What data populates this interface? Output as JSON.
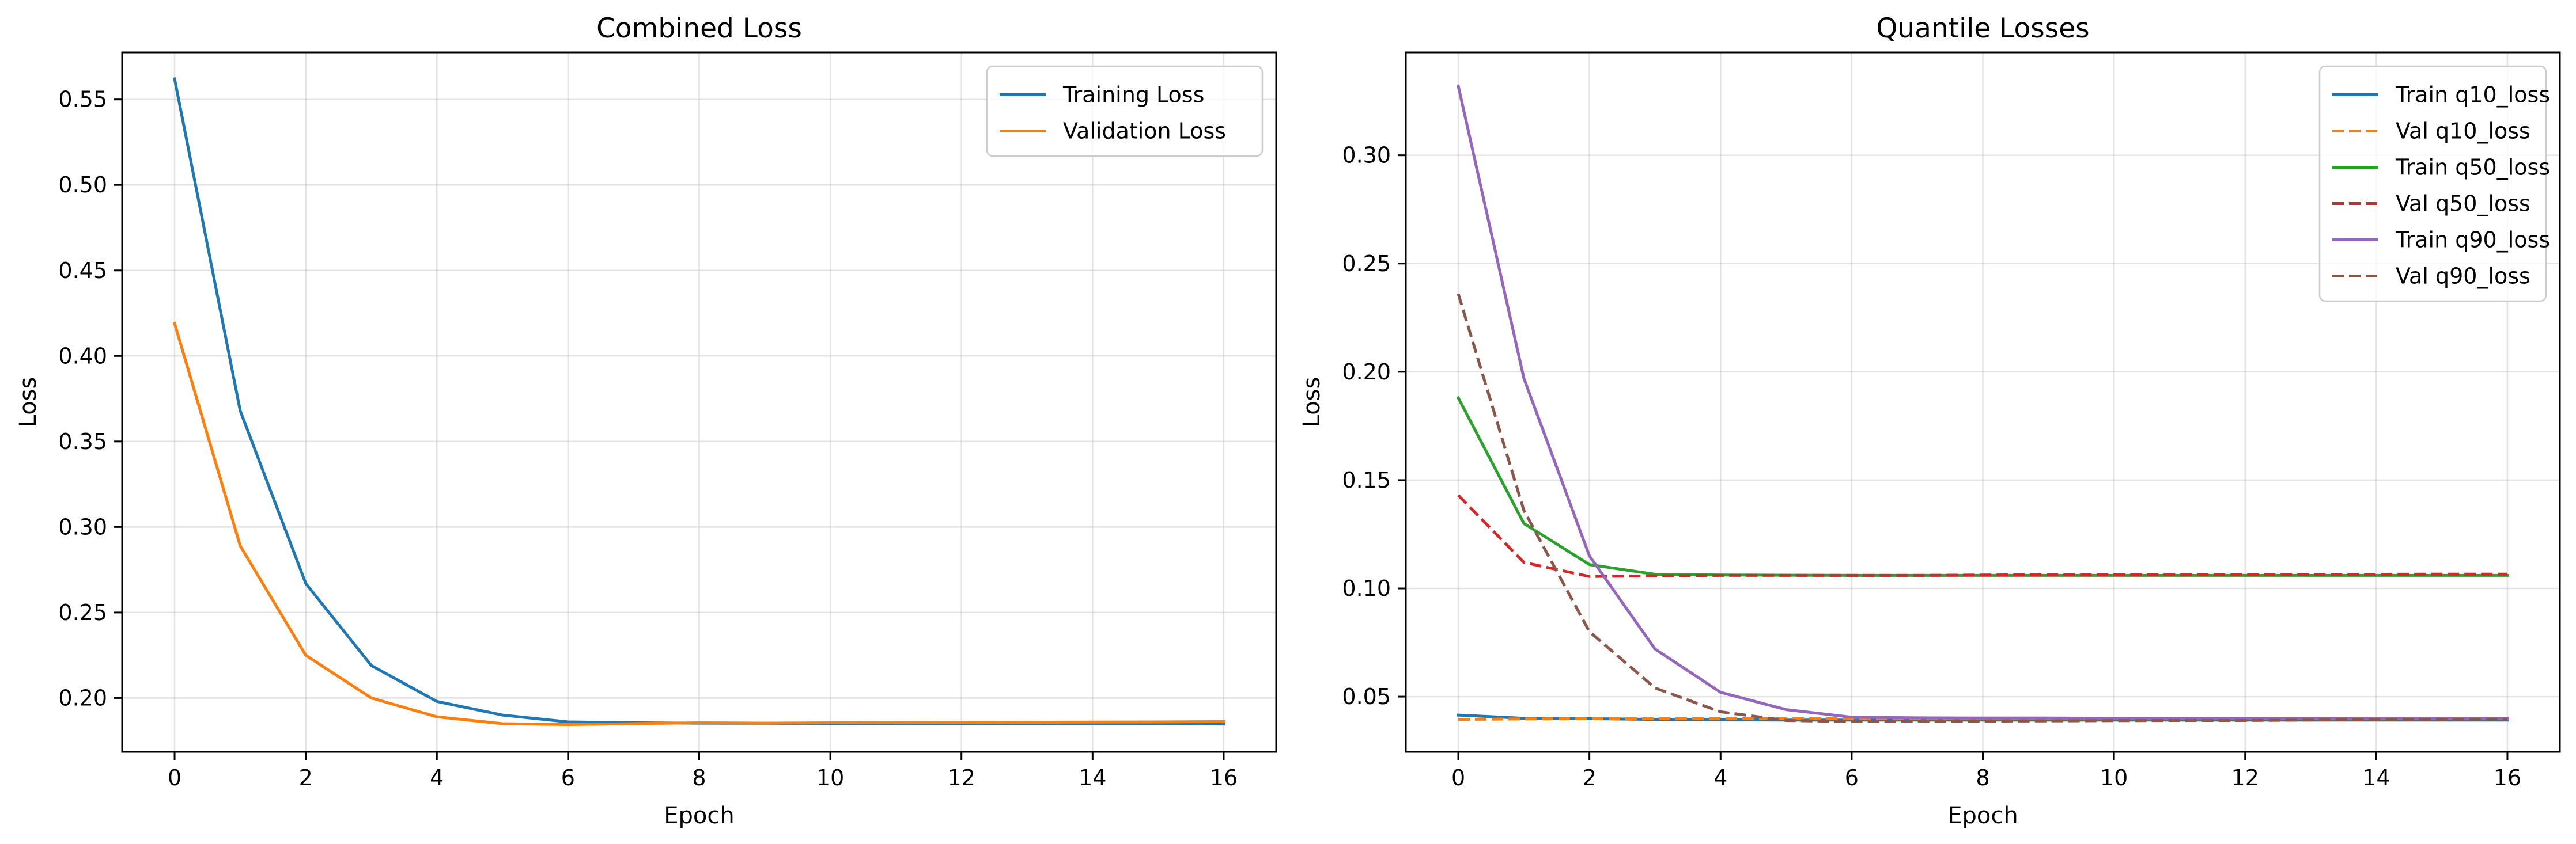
{
  "chart_data": [
    {
      "type": "line",
      "title": "Combined Loss",
      "xlabel": "Epoch",
      "ylabel": "Loss",
      "xlim": [
        -0.8,
        16.8
      ],
      "ylim": [
        0.1685,
        0.5775
      ],
      "xticks": [
        0,
        2,
        4,
        6,
        8,
        10,
        12,
        14,
        16
      ],
      "xtick_labels": [
        "0",
        "2",
        "4",
        "6",
        "8",
        "10",
        "12",
        "14",
        "16"
      ],
      "yticks": [
        0.2,
        0.25,
        0.3,
        0.35,
        0.4,
        0.45,
        0.5,
        0.55
      ],
      "ytick_labels": [
        "0.20",
        "0.25",
        "0.30",
        "0.35",
        "0.40",
        "0.45",
        "0.50",
        "0.55"
      ],
      "grid": true,
      "legend_position": "top-right",
      "x": [
        0,
        1,
        2,
        3,
        4,
        5,
        6,
        7,
        8,
        9,
        10,
        11,
        12,
        13,
        14,
        15,
        16
      ],
      "series": [
        {
          "name": "Training Loss",
          "color": "#1f77b4",
          "dash": "solid",
          "values": [
            0.562,
            0.368,
            0.267,
            0.219,
            0.198,
            0.19,
            0.186,
            0.1855,
            0.1853,
            0.1852,
            0.1851,
            0.185,
            0.185,
            0.1849,
            0.1849,
            0.1849,
            0.1848
          ]
        },
        {
          "name": "Validation Loss",
          "color": "#ff7f0e",
          "dash": "solid",
          "values": [
            0.419,
            0.289,
            0.225,
            0.2,
            0.189,
            0.185,
            0.1845,
            0.185,
            0.1855,
            0.1853,
            0.1855,
            0.1856,
            0.1857,
            0.1858,
            0.1859,
            0.186,
            0.1862
          ]
        }
      ]
    },
    {
      "type": "line",
      "title": "Quantile Losses",
      "xlabel": "Epoch",
      "ylabel": "Loss",
      "xlim": [
        -0.8,
        16.8
      ],
      "ylim": [
        0.0245,
        0.3475
      ],
      "xticks": [
        0,
        2,
        4,
        6,
        8,
        10,
        12,
        14,
        16
      ],
      "xtick_labels": [
        "0",
        "2",
        "4",
        "6",
        "8",
        "10",
        "12",
        "14",
        "16"
      ],
      "yticks": [
        0.05,
        0.1,
        0.15,
        0.2,
        0.25,
        0.3
      ],
      "ytick_labels": [
        "0.05",
        "0.10",
        "0.15",
        "0.20",
        "0.25",
        "0.30"
      ],
      "grid": true,
      "legend_position": "top-right",
      "x": [
        0,
        1,
        2,
        3,
        4,
        5,
        6,
        7,
        8,
        9,
        10,
        11,
        12,
        13,
        14,
        15,
        16
      ],
      "series": [
        {
          "name": "Train q10_loss",
          "color": "#1f77b4",
          "dash": "solid",
          "values": [
            0.0415,
            0.04,
            0.0398,
            0.0395,
            0.0393,
            0.0392,
            0.0392,
            0.0392,
            0.0392,
            0.0392,
            0.0392,
            0.0392,
            0.0392,
            0.0392,
            0.0392,
            0.0392,
            0.0392
          ]
        },
        {
          "name": "Val q10_loss",
          "color": "#ff7f0e",
          "dash": "dashed",
          "values": [
            0.0395,
            0.0397,
            0.0398,
            0.0398,
            0.0399,
            0.0399,
            0.0399,
            0.0399,
            0.0399,
            0.0399,
            0.0399,
            0.0399,
            0.0399,
            0.0399,
            0.0399,
            0.0399,
            0.0399
          ]
        },
        {
          "name": "Train q50_loss",
          "color": "#2ca02c",
          "dash": "solid",
          "values": [
            0.188,
            0.13,
            0.111,
            0.1065,
            0.1062,
            0.1061,
            0.106,
            0.106,
            0.106,
            0.106,
            0.106,
            0.106,
            0.106,
            0.106,
            0.106,
            0.106,
            0.106
          ]
        },
        {
          "name": "Val q50_loss",
          "color": "#d62728",
          "dash": "dashed",
          "values": [
            0.143,
            0.112,
            0.1055,
            0.1058,
            0.106,
            0.106,
            0.106,
            0.106,
            0.1062,
            0.1063,
            0.1063,
            0.1064,
            0.1064,
            0.1065,
            0.1065,
            0.1066,
            0.1066
          ]
        },
        {
          "name": "Train q90_loss",
          "color": "#9467bd",
          "dash": "solid",
          "values": [
            0.332,
            0.197,
            0.115,
            0.072,
            0.052,
            0.044,
            0.0405,
            0.0402,
            0.0401,
            0.0401,
            0.04,
            0.04,
            0.04,
            0.04,
            0.04,
            0.04,
            0.04
          ]
        },
        {
          "name": "Val q90_loss",
          "color": "#8c564b",
          "dash": "dashed",
          "values": [
            0.236,
            0.136,
            0.08,
            0.054,
            0.043,
            0.039,
            0.0385,
            0.0385,
            0.0387,
            0.0388,
            0.0389,
            0.039,
            0.039,
            0.0392,
            0.0393,
            0.0394,
            0.0396
          ]
        }
      ]
    }
  ]
}
